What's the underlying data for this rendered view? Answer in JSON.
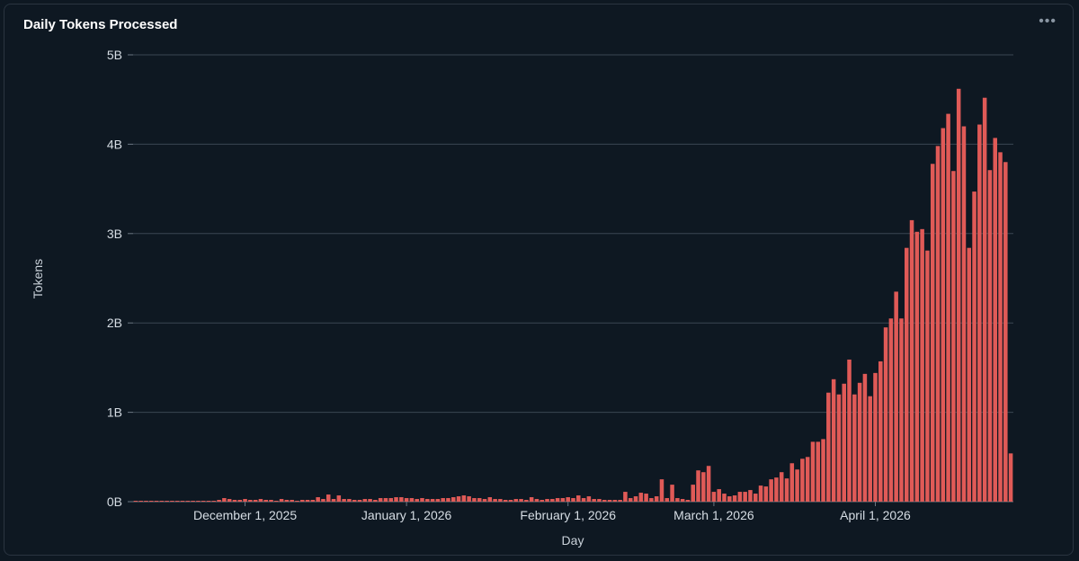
{
  "panel": {
    "title": "Daily Tokens Processed",
    "menu_icon": "ellipsis-horizontal-icon"
  },
  "chart_data": {
    "type": "bar",
    "title": "Daily Tokens Processed",
    "xlabel": "Day",
    "ylabel": "Tokens",
    "x_start_date": "2025-11-10",
    "x_ticks": [
      "December 1, 2025",
      "January 1, 2026",
      "February 1, 2026",
      "March 1, 2026",
      "April 1, 2026"
    ],
    "y_ticks": [
      "0B",
      "1B",
      "2B",
      "3B",
      "4B",
      "5B"
    ],
    "ylim": [
      0,
      5000000000
    ],
    "grid": true,
    "bar_color": "#e05a57",
    "values": [
      10000000,
      10000000,
      10000000,
      10000000,
      10000000,
      10000000,
      10000000,
      10000000,
      10000000,
      10000000,
      10000000,
      10000000,
      10000000,
      10000000,
      10000000,
      10000000,
      20000000,
      40000000,
      30000000,
      20000000,
      20000000,
      30000000,
      20000000,
      20000000,
      30000000,
      20000000,
      20000000,
      10000000,
      30000000,
      20000000,
      20000000,
      10000000,
      20000000,
      20000000,
      20000000,
      50000000,
      30000000,
      80000000,
      30000000,
      70000000,
      30000000,
      30000000,
      20000000,
      20000000,
      30000000,
      30000000,
      20000000,
      40000000,
      40000000,
      40000000,
      50000000,
      50000000,
      40000000,
      40000000,
      30000000,
      40000000,
      30000000,
      30000000,
      30000000,
      40000000,
      40000000,
      50000000,
      60000000,
      70000000,
      60000000,
      40000000,
      40000000,
      30000000,
      50000000,
      30000000,
      30000000,
      20000000,
      20000000,
      30000000,
      30000000,
      20000000,
      50000000,
      30000000,
      20000000,
      30000000,
      30000000,
      40000000,
      40000000,
      50000000,
      40000000,
      70000000,
      40000000,
      60000000,
      30000000,
      30000000,
      20000000,
      20000000,
      20000000,
      20000000,
      110000000,
      40000000,
      60000000,
      100000000,
      90000000,
      40000000,
      60000000,
      250000000,
      40000000,
      190000000,
      40000000,
      30000000,
      20000000,
      190000000,
      350000000,
      330000000,
      400000000,
      110000000,
      140000000,
      90000000,
      60000000,
      70000000,
      110000000,
      110000000,
      130000000,
      90000000,
      180000000,
      170000000,
      250000000,
      270000000,
      330000000,
      260000000,
      430000000,
      360000000,
      480000000,
      500000000,
      670000000,
      670000000,
      700000000,
      1220000000,
      1370000000,
      1200000000,
      1320000000,
      1590000000,
      1200000000,
      1330000000,
      1430000000,
      1180000000,
      1440000000,
      1570000000,
      1950000000,
      2050000000,
      2350000000,
      2050000000,
      2840000000,
      3150000000,
      3020000000,
      3050000000,
      2810000000,
      3780000000,
      3980000000,
      4180000000,
      4340000000,
      3700000000,
      4620000000,
      4200000000,
      2840000000,
      3470000000,
      4220000000,
      4520000000,
      3710000000,
      4070000000,
      3910000000,
      3800000000,
      540000000
    ]
  }
}
